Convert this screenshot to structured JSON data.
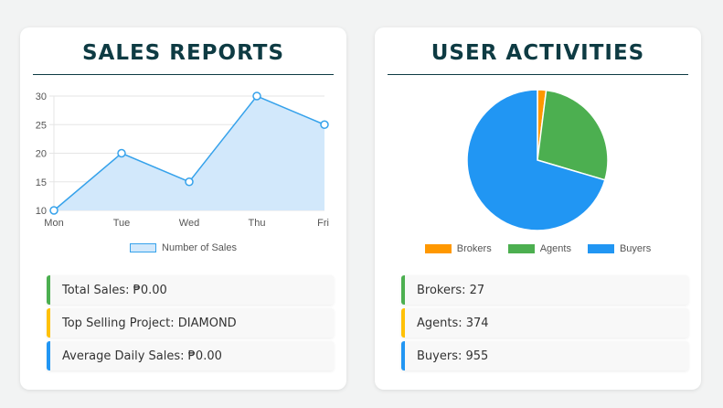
{
  "sales_card": {
    "title": "SALES REPORTS",
    "legend_label": "Number of Sales",
    "stats": [
      {
        "label": "Total Sales: ₱0.00",
        "accent": "#4caf50"
      },
      {
        "label": "Top Selling Project: DIAMOND",
        "accent": "#ffc107"
      },
      {
        "label": "Average Daily Sales: ₱0.00",
        "accent": "#2196f3"
      }
    ]
  },
  "users_card": {
    "title": "USER ACTIVITIES",
    "stats": [
      {
        "label": "Brokers: 27",
        "accent": "#4caf50"
      },
      {
        "label": "Agents: 374",
        "accent": "#ffc107"
      },
      {
        "label": "Buyers: 955",
        "accent": "#2196f3"
      }
    ]
  },
  "chart_data": [
    {
      "type": "area",
      "title": "",
      "categories": [
        "Mon",
        "Tue",
        "Wed",
        "Thu",
        "Fri"
      ],
      "series": [
        {
          "name": "Number of Sales",
          "values": [
            10,
            20,
            15,
            30,
            25
          ]
        }
      ],
      "ylim": [
        10,
        30
      ],
      "yticks": [
        10,
        15,
        20,
        25,
        30
      ],
      "grid": true,
      "legend": "bottom",
      "colors": {
        "line": "#36a2eb",
        "fill": "#d2e8fb"
      }
    },
    {
      "type": "pie",
      "title": "",
      "labels": [
        "Brokers",
        "Agents",
        "Buyers"
      ],
      "values": [
        27,
        374,
        955
      ],
      "colors": [
        "#ff9800",
        "#4caf50",
        "#2196f3"
      ],
      "legend": "bottom"
    }
  ]
}
